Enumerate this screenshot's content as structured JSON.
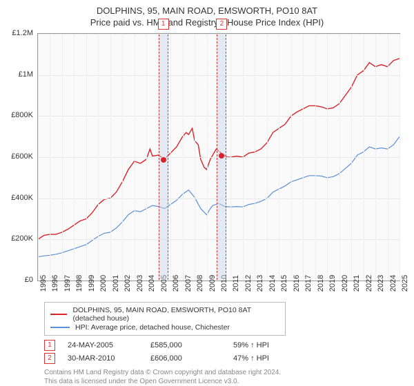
{
  "title": "DOLPHINS, 95, MAIN ROAD, EMSWORTH, PO10 8AT",
  "subtitle": "Price paid vs. HM Land Registry's House Price Index (HPI)",
  "chart": {
    "type": "line",
    "background_color": "#fafafa",
    "grid_color": "#e8e8e8",
    "border_color": "#999999",
    "ylim": [
      0,
      1200000
    ],
    "ytick_step": 200000,
    "yticks": [
      "£0",
      "£200K",
      "£400K",
      "£600K",
      "£800K",
      "£1M",
      "£1.2M"
    ],
    "xlim": [
      1995,
      2025
    ],
    "xticks": [
      1995,
      1996,
      1997,
      1998,
      1999,
      2000,
      2001,
      2002,
      2003,
      2004,
      2005,
      2006,
      2007,
      2008,
      2009,
      2010,
      2011,
      2012,
      2013,
      2014,
      2015,
      2016,
      2017,
      2018,
      2019,
      2020,
      2021,
      2022,
      2023,
      2024,
      2025
    ],
    "series": [
      {
        "name": "DOLPHINS, 95, MAIN ROAD, EMSWORTH, PO10 8AT (detached house)",
        "color": "#d8232a",
        "line_width": 1.4,
        "data": [
          [
            1995,
            200000
          ],
          [
            1995.5,
            220000
          ],
          [
            1996,
            225000
          ],
          [
            1996.5,
            225000
          ],
          [
            1997,
            235000
          ],
          [
            1997.5,
            250000
          ],
          [
            1998,
            270000
          ],
          [
            1998.5,
            290000
          ],
          [
            1999,
            300000
          ],
          [
            1999.5,
            330000
          ],
          [
            2000,
            370000
          ],
          [
            2000.5,
            395000
          ],
          [
            2001,
            400000
          ],
          [
            2001.5,
            430000
          ],
          [
            2002,
            480000
          ],
          [
            2002.5,
            540000
          ],
          [
            2003,
            580000
          ],
          [
            2003.5,
            570000
          ],
          [
            2004,
            590000
          ],
          [
            2004.3,
            640000
          ],
          [
            2004.5,
            605000
          ],
          [
            2005,
            610000
          ],
          [
            2005.5,
            590000
          ],
          [
            2006,
            620000
          ],
          [
            2006.5,
            650000
          ],
          [
            2007,
            700000
          ],
          [
            2007.3,
            720000
          ],
          [
            2007.5,
            710000
          ],
          [
            2007.8,
            740000
          ],
          [
            2008,
            680000
          ],
          [
            2008.3,
            660000
          ],
          [
            2008.5,
            590000
          ],
          [
            2008.8,
            550000
          ],
          [
            2009,
            540000
          ],
          [
            2009.3,
            590000
          ],
          [
            2009.5,
            610000
          ],
          [
            2009.8,
            640000
          ],
          [
            2010,
            630000
          ],
          [
            2010.3,
            615000
          ],
          [
            2010.7,
            600000
          ],
          [
            2011,
            600000
          ],
          [
            2011.5,
            605000
          ],
          [
            2012,
            600000
          ],
          [
            2012.5,
            620000
          ],
          [
            2013,
            625000
          ],
          [
            2013.5,
            640000
          ],
          [
            2014,
            670000
          ],
          [
            2014.5,
            720000
          ],
          [
            2015,
            740000
          ],
          [
            2015.5,
            760000
          ],
          [
            2016,
            800000
          ],
          [
            2016.5,
            820000
          ],
          [
            2017,
            835000
          ],
          [
            2017.5,
            850000
          ],
          [
            2018,
            850000
          ],
          [
            2018.5,
            845000
          ],
          [
            2019,
            835000
          ],
          [
            2019.5,
            840000
          ],
          [
            2020,
            860000
          ],
          [
            2020.5,
            900000
          ],
          [
            2021,
            940000
          ],
          [
            2021.5,
            1000000
          ],
          [
            2022,
            1020000
          ],
          [
            2022.5,
            1060000
          ],
          [
            2023,
            1040000
          ],
          [
            2023.5,
            1050000
          ],
          [
            2024,
            1040000
          ],
          [
            2024.5,
            1070000
          ],
          [
            2025,
            1080000
          ]
        ]
      },
      {
        "name": "HPI: Average price, detached house, Chichester",
        "color": "#5b8fd6",
        "line_width": 1.2,
        "data": [
          [
            1995,
            115000
          ],
          [
            1995.5,
            120000
          ],
          [
            1996,
            123000
          ],
          [
            1996.5,
            128000
          ],
          [
            1997,
            135000
          ],
          [
            1997.5,
            145000
          ],
          [
            1998,
            155000
          ],
          [
            1998.5,
            165000
          ],
          [
            1999,
            175000
          ],
          [
            1999.5,
            195000
          ],
          [
            2000,
            215000
          ],
          [
            2000.5,
            230000
          ],
          [
            2001,
            235000
          ],
          [
            2001.5,
            255000
          ],
          [
            2002,
            285000
          ],
          [
            2002.5,
            320000
          ],
          [
            2003,
            340000
          ],
          [
            2003.5,
            335000
          ],
          [
            2004,
            350000
          ],
          [
            2004.5,
            365000
          ],
          [
            2005,
            360000
          ],
          [
            2005.5,
            350000
          ],
          [
            2006,
            370000
          ],
          [
            2006.5,
            390000
          ],
          [
            2007,
            420000
          ],
          [
            2007.5,
            440000
          ],
          [
            2008,
            405000
          ],
          [
            2008.5,
            350000
          ],
          [
            2009,
            320000
          ],
          [
            2009.3,
            350000
          ],
          [
            2009.5,
            365000
          ],
          [
            2010,
            375000
          ],
          [
            2010.5,
            360000
          ],
          [
            2011,
            358000
          ],
          [
            2011.5,
            360000
          ],
          [
            2012,
            358000
          ],
          [
            2012.5,
            370000
          ],
          [
            2013,
            375000
          ],
          [
            2013.5,
            385000
          ],
          [
            2014,
            400000
          ],
          [
            2014.5,
            430000
          ],
          [
            2015,
            445000
          ],
          [
            2015.5,
            460000
          ],
          [
            2016,
            480000
          ],
          [
            2016.5,
            490000
          ],
          [
            2017,
            500000
          ],
          [
            2017.5,
            510000
          ],
          [
            2018,
            510000
          ],
          [
            2018.5,
            508000
          ],
          [
            2019,
            500000
          ],
          [
            2019.5,
            505000
          ],
          [
            2020,
            520000
          ],
          [
            2020.5,
            545000
          ],
          [
            2021,
            570000
          ],
          [
            2021.5,
            610000
          ],
          [
            2022,
            625000
          ],
          [
            2022.5,
            650000
          ],
          [
            2023,
            640000
          ],
          [
            2023.5,
            645000
          ],
          [
            2024,
            640000
          ],
          [
            2024.5,
            660000
          ],
          [
            2025,
            700000
          ]
        ]
      }
    ],
    "markers": [
      {
        "index": "1",
        "date": "24-MAY-2005",
        "x": 2005.4,
        "price_label": "£585,000",
        "price_y": 585000,
        "pct": "59% ↑ HPI",
        "dot_color": "#d8232a"
      },
      {
        "index": "2",
        "date": "30-MAR-2010",
        "x": 2010.25,
        "price_label": "£606,000",
        "price_y": 606000,
        "pct": "47% ↑ HPI",
        "dot_color": "#d8232a"
      }
    ],
    "marker_band_color": "rgba(200,215,235,0.45)",
    "marker_border_color": "#d8232a"
  },
  "footer_line1": "Contains HM Land Registry data © Crown copyright and database right 2024.",
  "footer_line2": "This data is licensed under the Open Government Licence v3.0."
}
